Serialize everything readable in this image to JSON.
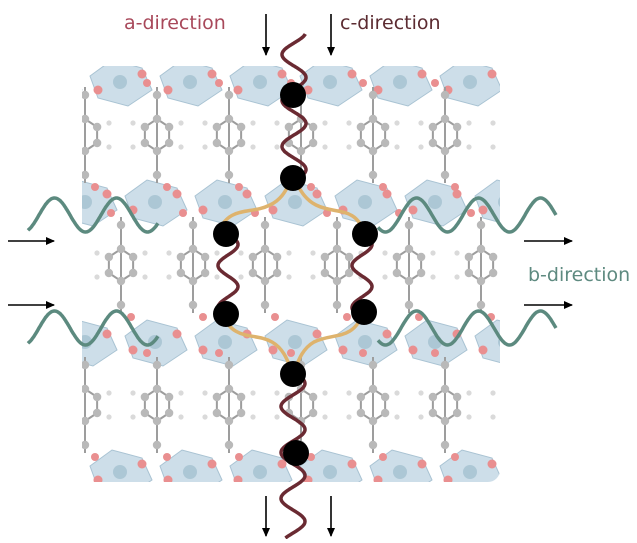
{
  "labels": {
    "a_direction": "a-direction",
    "c_direction": "c-direction",
    "b_direction": "b-direction"
  },
  "colors": {
    "a_direction": "#a8485a",
    "c_direction": "#5b2b31",
    "b_direction": "#5e8a80",
    "chain_a": "#6a2a32",
    "chain_b": "#5c8a7f",
    "link": "#deb36d",
    "node": "#000000",
    "polyhedra": "#bcd3e2",
    "oxygen": "#e98f90",
    "carbon": "#b9b9b9",
    "hydrogen": "#dadada",
    "metal": "#a8c4d3"
  },
  "diagram": {
    "description_free": true,
    "icons": [
      "arrow-down-icon",
      "arrow-right-icon"
    ]
  }
}
